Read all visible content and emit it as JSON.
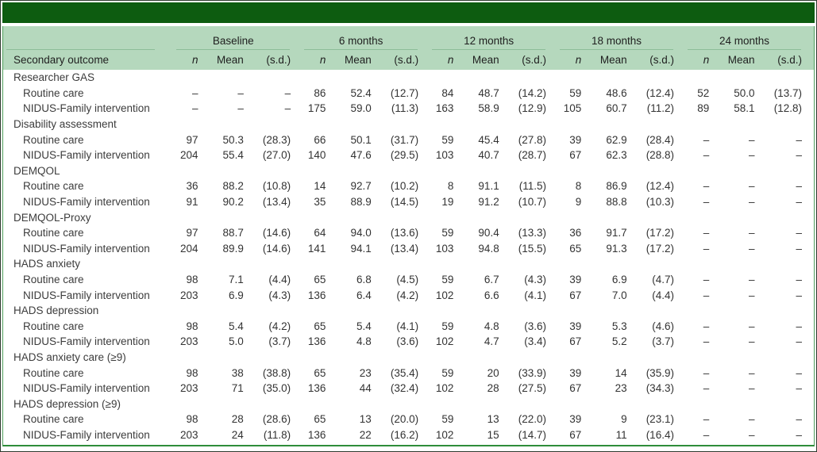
{
  "colors": {
    "title_bar": "#0d5c10",
    "header_bg": "#b5d8bd",
    "header_rule": "#8cbd98",
    "table_border": "#4f9e5c",
    "bottom_rule": "#2f8d3a",
    "frame_border": "#2f3a2f",
    "text": "#333333"
  },
  "table": {
    "stub_header": "Secondary outcome",
    "col_groups": [
      "Baseline",
      "6 months",
      "12 months",
      "18 months",
      "24 months"
    ],
    "sub_headers": [
      "n",
      "Mean",
      "(s.d.)"
    ],
    "sections": [
      {
        "label": "Researcher GAS",
        "rows": [
          {
            "label": "Routine care",
            "values": [
              "–",
              "–",
              "–",
              "86",
              "52.4",
              "(12.7)",
              "84",
              "48.7",
              "(14.2)",
              "59",
              "48.6",
              "(12.4)",
              "52",
              "50.0",
              "(13.7)"
            ]
          },
          {
            "label": "NIDUS-Family intervention",
            "values": [
              "–",
              "–",
              "–",
              "175",
              "59.0",
              "(11.3)",
              "163",
              "58.9",
              "(12.9)",
              "105",
              "60.7",
              "(11.2)",
              "89",
              "58.1",
              "(12.8)"
            ]
          }
        ]
      },
      {
        "label": "Disability assessment",
        "rows": [
          {
            "label": "Routine care",
            "values": [
              "97",
              "50.3",
              "(28.3)",
              "66",
              "50.1",
              "(31.7)",
              "59",
              "45.4",
              "(27.8)",
              "39",
              "62.9",
              "(28.4)",
              "–",
              "–",
              "–"
            ]
          },
          {
            "label": "NIDUS-Family intervention",
            "values": [
              "204",
              "55.4",
              "(27.0)",
              "140",
              "47.6",
              "(29.5)",
              "103",
              "40.7",
              "(28.7)",
              "67",
              "62.3",
              "(28.8)",
              "–",
              "–",
              "–"
            ]
          }
        ]
      },
      {
        "label": "DEMQOL",
        "rows": [
          {
            "label": "Routine care",
            "values": [
              "36",
              "88.2",
              "(10.8)",
              "14",
              "92.7",
              "(10.2)",
              "8",
              "91.1",
              "(11.5)",
              "8",
              "86.9",
              "(12.4)",
              "–",
              "–",
              "–"
            ]
          },
          {
            "label": "NIDUS-Family intervention",
            "values": [
              "91",
              "90.2",
              "(13.4)",
              "35",
              "88.9",
              "(14.5)",
              "19",
              "91.2",
              "(10.7)",
              "9",
              "88.8",
              "(10.3)",
              "–",
              "–",
              "–"
            ]
          }
        ]
      },
      {
        "label": "DEMQOL-Proxy",
        "rows": [
          {
            "label": "Routine care",
            "values": [
              "97",
              "88.7",
              "(14.6)",
              "64",
              "94.0",
              "(13.6)",
              "59",
              "90.4",
              "(13.3)",
              "36",
              "91.7",
              "(17.2)",
              "–",
              "–",
              "–"
            ]
          },
          {
            "label": "NIDUS-Family intervention",
            "values": [
              "204",
              "89.9",
              "(14.6)",
              "141",
              "94.1",
              "(13.4)",
              "103",
              "94.8",
              "(15.5)",
              "65",
              "91.3",
              "(17.2)",
              "–",
              "–",
              "–"
            ]
          }
        ]
      },
      {
        "label": "HADS anxiety",
        "rows": [
          {
            "label": "Routine care",
            "values": [
              "98",
              "7.1",
              "(4.4)",
              "65",
              "6.8",
              "(4.5)",
              "59",
              "6.7",
              "(4.3)",
              "39",
              "6.9",
              "(4.7)",
              "–",
              "–",
              "–"
            ]
          },
          {
            "label": "NIDUS-Family intervention",
            "values": [
              "203",
              "6.9",
              "(4.3)",
              "136",
              "6.4",
              "(4.2)",
              "102",
              "6.6",
              "(4.1)",
              "67",
              "7.0",
              "(4.4)",
              "–",
              "–",
              "–"
            ]
          }
        ]
      },
      {
        "label": "HADS depression",
        "rows": [
          {
            "label": "Routine care",
            "values": [
              "98",
              "5.4",
              "(4.2)",
              "65",
              "5.4",
              "(4.1)",
              "59",
              "4.8",
              "(3.6)",
              "39",
              "5.3",
              "(4.6)",
              "–",
              "–",
              "–"
            ]
          },
          {
            "label": "NIDUS-Family intervention",
            "values": [
              "203",
              "5.0",
              "(3.7)",
              "136",
              "4.8",
              "(3.6)",
              "102",
              "4.7",
              "(3.4)",
              "67",
              "5.2",
              "(3.7)",
              "–",
              "–",
              "–"
            ]
          }
        ]
      },
      {
        "label": "HADS anxiety care (≥9)",
        "rows": [
          {
            "label": "Routine care",
            "values": [
              "98",
              "38",
              "(38.8)",
              "65",
              "23",
              "(35.4)",
              "59",
              "20",
              "(33.9)",
              "39",
              "14",
              "(35.9)",
              "–",
              "–",
              "–"
            ]
          },
          {
            "label": "NIDUS-Family intervention",
            "values": [
              "203",
              "71",
              "(35.0)",
              "136",
              "44",
              "(32.4)",
              "102",
              "28",
              "(27.5)",
              "67",
              "23",
              "(34.3)",
              "–",
              "–",
              "–"
            ]
          }
        ]
      },
      {
        "label": "HADS depression (≥9)",
        "rows": [
          {
            "label": "Routine care",
            "values": [
              "98",
              "28",
              "(28.6)",
              "65",
              "13",
              "(20.0)",
              "59",
              "13",
              "(22.0)",
              "39",
              "9",
              "(23.1)",
              "–",
              "–",
              "–"
            ]
          },
          {
            "label": "NIDUS-Family intervention",
            "values": [
              "203",
              "24",
              "(11.8)",
              "136",
              "22",
              "(16.2)",
              "102",
              "15",
              "(14.7)",
              "67",
              "11",
              "(16.4)",
              "–",
              "–",
              "–"
            ]
          }
        ]
      }
    ]
  }
}
